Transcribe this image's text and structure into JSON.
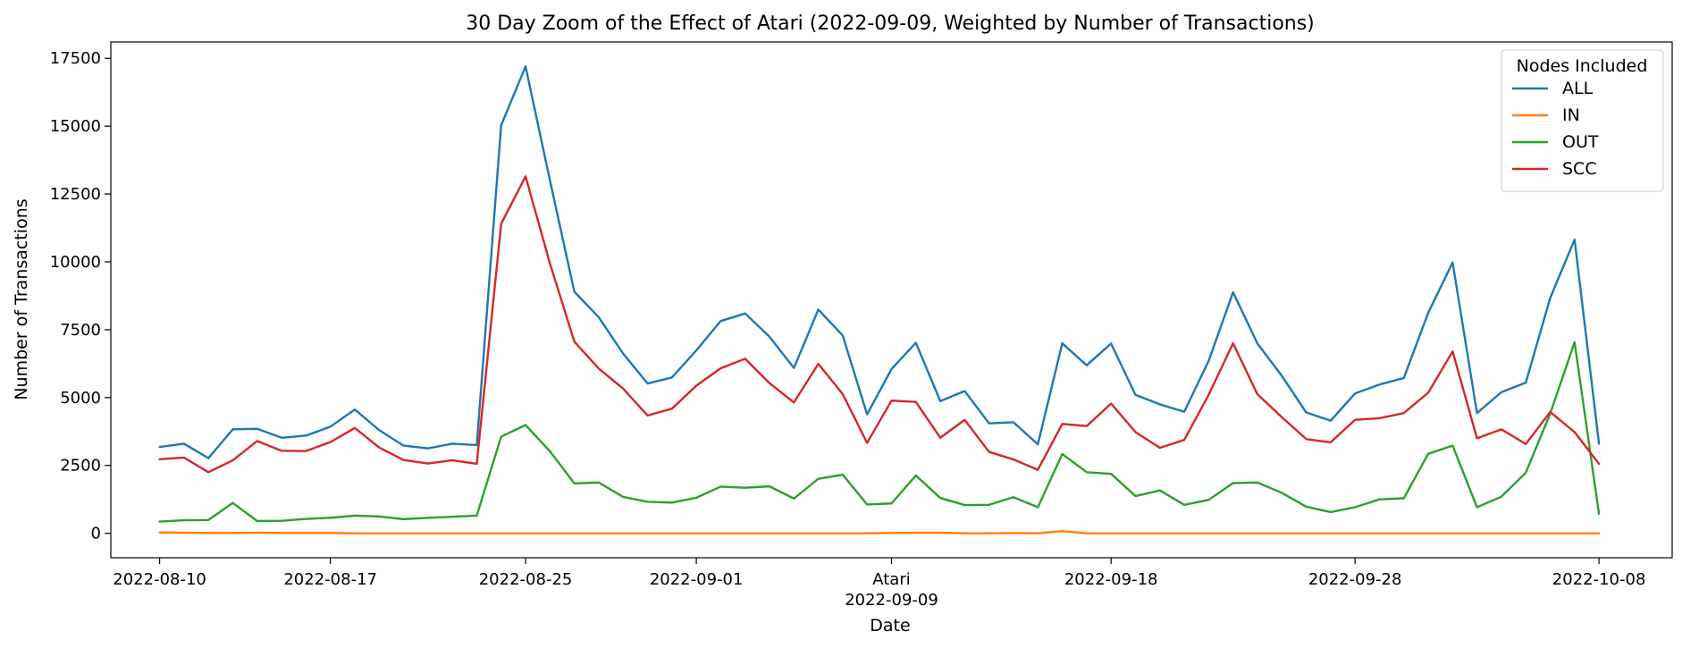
{
  "chart_data": {
    "type": "line",
    "title": "30 Day Zoom of the Effect of Atari (2022-09-09, Weighted by Number of Transactions)",
    "xlabel": "Date",
    "ylabel": "Number of Transactions",
    "ylim": [
      -900,
      18100
    ],
    "yticks": [
      0,
      2500,
      5000,
      7500,
      10000,
      12500,
      15000,
      17500
    ],
    "ytick_labels": [
      "0",
      "2500",
      "5000",
      "7500",
      "10000",
      "12500",
      "15000",
      "17500"
    ],
    "xlim": [
      "2022-08-08",
      "2022-10-11"
    ],
    "x": [
      "2022-08-10",
      "2022-08-11",
      "2022-08-12",
      "2022-08-13",
      "2022-08-14",
      "2022-08-15",
      "2022-08-16",
      "2022-08-17",
      "2022-08-18",
      "2022-08-19",
      "2022-08-20",
      "2022-08-21",
      "2022-08-22",
      "2022-08-23",
      "2022-08-24",
      "2022-08-25",
      "2022-08-26",
      "2022-08-27",
      "2022-08-28",
      "2022-08-29",
      "2022-08-30",
      "2022-08-31",
      "2022-09-01",
      "2022-09-02",
      "2022-09-03",
      "2022-09-04",
      "2022-09-05",
      "2022-09-06",
      "2022-09-07",
      "2022-09-08",
      "2022-09-09",
      "2022-09-10",
      "2022-09-11",
      "2022-09-12",
      "2022-09-13",
      "2022-09-14",
      "2022-09-15",
      "2022-09-16",
      "2022-09-17",
      "2022-09-18",
      "2022-09-19",
      "2022-09-20",
      "2022-09-21",
      "2022-09-22",
      "2022-09-23",
      "2022-09-24",
      "2022-09-25",
      "2022-09-26",
      "2022-09-27",
      "2022-09-28",
      "2022-09-29",
      "2022-09-30",
      "2022-10-01",
      "2022-10-02",
      "2022-10-03",
      "2022-10-04",
      "2022-10-05",
      "2022-10-06",
      "2022-10-07",
      "2022-10-08"
    ],
    "xticks": [
      {
        "date": "2022-08-10",
        "label": "2022-08-10"
      },
      {
        "date": "2022-08-17",
        "label": "2022-08-17"
      },
      {
        "date": "2022-08-25",
        "label": "2022-08-25"
      },
      {
        "date": "2022-09-01",
        "label": "2022-09-01"
      },
      {
        "date": "2022-09-09",
        "label": "Atari",
        "sublabel": "2022-09-09"
      },
      {
        "date": "2022-09-18",
        "label": "2022-09-18"
      },
      {
        "date": "2022-09-28",
        "label": "2022-09-28"
      },
      {
        "date": "2022-10-08",
        "label": "2022-10-08"
      }
    ],
    "series": [
      {
        "name": "ALL",
        "color": "#1f77b4",
        "values": [
          3180,
          3300,
          2770,
          3830,
          3850,
          3520,
          3600,
          3930,
          4560,
          3800,
          3230,
          3130,
          3300,
          3250,
          15030,
          17200,
          13000,
          8900,
          7960,
          6620,
          5520,
          5740,
          6740,
          7820,
          8100,
          7240,
          6090,
          8240,
          7290,
          4380,
          6050,
          7020,
          4870,
          5240,
          4050,
          4090,
          3280,
          7000,
          6190,
          6990,
          5100,
          4750,
          4480,
          6350,
          8880,
          6990,
          5800,
          4450,
          4150,
          5150,
          5480,
          5720,
          8120,
          9980,
          4430,
          5200,
          5550,
          8670,
          10820,
          3300
        ]
      },
      {
        "name": "IN",
        "color": "#ff7f0e",
        "values": [
          30,
          20,
          10,
          10,
          20,
          10,
          10,
          10,
          0,
          0,
          0,
          0,
          0,
          0,
          0,
          0,
          0,
          0,
          0,
          0,
          0,
          0,
          0,
          0,
          0,
          0,
          0,
          0,
          0,
          0,
          10,
          20,
          20,
          0,
          0,
          10,
          0,
          80,
          0,
          0,
          0,
          0,
          0,
          0,
          0,
          0,
          0,
          0,
          0,
          0,
          0,
          0,
          0,
          0,
          0,
          0,
          0,
          0,
          0,
          0
        ]
      },
      {
        "name": "OUT",
        "color": "#2ca02c",
        "values": [
          430,
          480,
          490,
          1120,
          450,
          460,
          530,
          570,
          650,
          620,
          520,
          570,
          610,
          650,
          3560,
          3990,
          3020,
          1840,
          1870,
          1340,
          1160,
          1130,
          1310,
          1720,
          1680,
          1730,
          1280,
          2010,
          2160,
          1060,
          1100,
          2130,
          1300,
          1040,
          1050,
          1330,
          960,
          2920,
          2250,
          2190,
          1370,
          1580,
          1050,
          1230,
          1850,
          1870,
          1490,
          980,
          780,
          960,
          1250,
          1290,
          2930,
          3230,
          960,
          1350,
          2230,
          4410,
          7040,
          720
        ]
      },
      {
        "name": "SCC",
        "color": "#d62728",
        "values": [
          2730,
          2790,
          2250,
          2690,
          3400,
          3040,
          3030,
          3360,
          3880,
          3160,
          2700,
          2570,
          2690,
          2560,
          11400,
          13150,
          9940,
          7060,
          6070,
          5330,
          4340,
          4590,
          5440,
          6080,
          6430,
          5530,
          4820,
          6240,
          5130,
          3330,
          4890,
          4840,
          3520,
          4180,
          3000,
          2720,
          2340,
          4030,
          3950,
          4780,
          3730,
          3150,
          3440,
          5100,
          7000,
          5120,
          4280,
          3470,
          3350,
          4180,
          4240,
          4430,
          5180,
          6700,
          3500,
          3830,
          3290,
          4470,
          3730,
          2560
        ]
      }
    ],
    "legend": {
      "title": "Nodes Included",
      "placement": "top-right"
    },
    "grid": false
  }
}
